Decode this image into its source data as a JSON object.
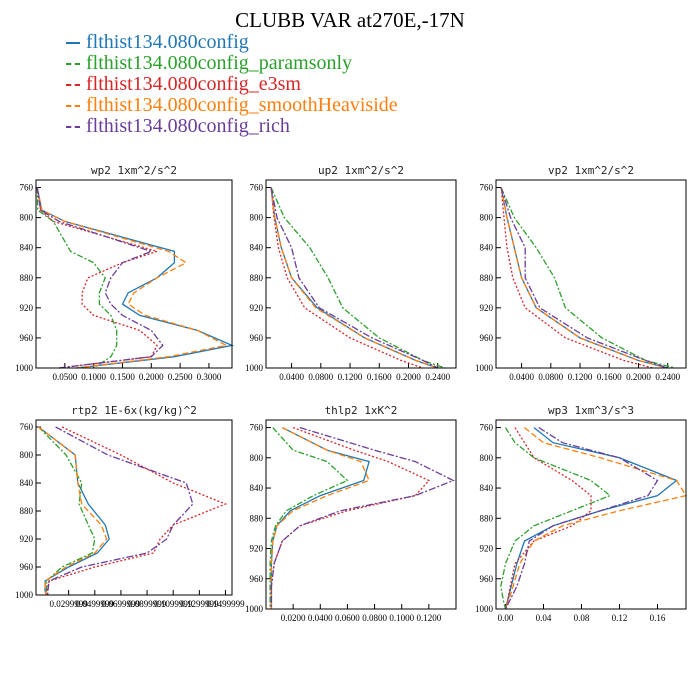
{
  "title": "CLUBB VAR at270E,-17N",
  "legend": [
    {
      "label": "flthist134.080config",
      "color": "#1f77b4",
      "dash": ""
    },
    {
      "label": "flthist134.080config_paramsonly",
      "color": "#2ca02c",
      "dash": "6,2,2,2"
    },
    {
      "label": "flthist134.080config_e3sm",
      "color": "#d62728",
      "dash": "2,2"
    },
    {
      "label": "flthist134.080config_smoothHeaviside",
      "color": "#ff7f0e",
      "dash": "6,3"
    },
    {
      "label": "flthist134.080config_rich",
      "color": "#6a3d9a",
      "dash": "7,2,2,2"
    }
  ],
  "chart_data": [
    {
      "type": "line",
      "title": "wp2  1xm^2/s^2",
      "xlim": [
        0,
        0.34
      ],
      "ylim": [
        1000,
        750
      ],
      "xticks": [
        0.05,
        0.1,
        0.15,
        0.2,
        0.25,
        0.3
      ],
      "xtick_labels": [
        "0.0500",
        "0.1000",
        "0.1500",
        "0.2000",
        "0.2500",
        "0.3000"
      ],
      "yticks": [
        760,
        800,
        840,
        880,
        920,
        960,
        1000
      ],
      "y": [
        760,
        790,
        805,
        845,
        860,
        880,
        900,
        915,
        930,
        950,
        970,
        985,
        1000
      ],
      "series": [
        {
          "name": "flthist134.080config",
          "x": [
            0.002,
            0.01,
            0.05,
            0.24,
            0.24,
            0.21,
            0.16,
            0.15,
            0.18,
            0.28,
            0.34,
            0.24,
            0.07
          ]
        },
        {
          "name": "flthist134.080config_paramsonly",
          "x": [
            0.002,
            0.003,
            0.03,
            0.06,
            0.1,
            0.12,
            0.11,
            0.11,
            0.13,
            0.14,
            0.14,
            0.13,
            0.1
          ]
        },
        {
          "name": "flthist134.080config_e3sm",
          "x": [
            0.002,
            0.008,
            0.03,
            0.21,
            0.15,
            0.09,
            0.08,
            0.08,
            0.1,
            0.18,
            0.21,
            0.2,
            0.04
          ]
        },
        {
          "name": "flthist134.080config_smoothHeaviside",
          "x": [
            0.002,
            0.01,
            0.05,
            0.23,
            0.26,
            0.21,
            0.17,
            0.16,
            0.19,
            0.28,
            0.33,
            0.23,
            0.07
          ]
        },
        {
          "name": "flthist134.080config_rich",
          "x": [
            0.002,
            0.008,
            0.04,
            0.2,
            0.15,
            0.13,
            0.12,
            0.13,
            0.15,
            0.2,
            0.22,
            0.2,
            0.04
          ]
        }
      ]
    },
    {
      "type": "line",
      "title": "up2  1xm^2/s^2",
      "xlim": [
        0.005,
        0.265
      ],
      "ylim": [
        1000,
        750
      ],
      "xticks": [
        0.04,
        0.08,
        0.12,
        0.16,
        0.2,
        0.24
      ],
      "xtick_labels": [
        "0.0400",
        "0.0800",
        "0.1200",
        "0.1600",
        "0.2000",
        "0.2400"
      ],
      "yticks": [
        760,
        800,
        840,
        880,
        920,
        960,
        1000
      ],
      "y": [
        760,
        800,
        840,
        880,
        920,
        960,
        990,
        1000
      ],
      "series": [
        {
          "name": "flthist134.080config",
          "x": [
            0.012,
            0.017,
            0.026,
            0.04,
            0.075,
            0.14,
            0.21,
            0.24
          ]
        },
        {
          "name": "flthist134.080config_paramsonly",
          "x": [
            0.012,
            0.03,
            0.065,
            0.09,
            0.11,
            0.16,
            0.22,
            0.25
          ]
        },
        {
          "name": "flthist134.080config_e3sm",
          "x": [
            0.012,
            0.016,
            0.022,
            0.034,
            0.058,
            0.12,
            0.19,
            0.22
          ]
        },
        {
          "name": "flthist134.080config_smoothHeaviside",
          "x": [
            0.012,
            0.017,
            0.026,
            0.04,
            0.073,
            0.14,
            0.21,
            0.24
          ]
        },
        {
          "name": "flthist134.080config_rich",
          "x": [
            0.012,
            0.02,
            0.04,
            0.05,
            0.078,
            0.15,
            0.22,
            0.24
          ]
        }
      ]
    },
    {
      "type": "line",
      "title": "vp2  1xm^2/s^2",
      "xlim": [
        0.005,
        0.265
      ],
      "ylim": [
        1000,
        750
      ],
      "xticks": [
        0.04,
        0.08,
        0.12,
        0.16,
        0.2,
        0.24
      ],
      "xtick_labels": [
        "0.0400",
        "0.0800",
        "0.1200",
        "0.1600",
        "0.2000",
        "0.2400"
      ],
      "yticks": [
        760,
        800,
        840,
        880,
        920,
        960,
        1000
      ],
      "y": [
        760,
        800,
        840,
        880,
        920,
        960,
        990,
        1000
      ],
      "series": [
        {
          "name": "flthist134.080config",
          "x": [
            0.012,
            0.02,
            0.03,
            0.04,
            0.06,
            0.12,
            0.2,
            0.24
          ]
        },
        {
          "name": "flthist134.080config_paramsonly",
          "x": [
            0.012,
            0.03,
            0.06,
            0.085,
            0.1,
            0.15,
            0.21,
            0.25
          ]
        },
        {
          "name": "flthist134.080config_e3sm",
          "x": [
            0.012,
            0.016,
            0.02,
            0.028,
            0.045,
            0.1,
            0.18,
            0.22
          ]
        },
        {
          "name": "flthist134.080config_smoothHeaviside",
          "x": [
            0.012,
            0.02,
            0.03,
            0.04,
            0.06,
            0.12,
            0.2,
            0.24
          ]
        },
        {
          "name": "flthist134.080config_rich",
          "x": [
            0.012,
            0.025,
            0.045,
            0.045,
            0.065,
            0.13,
            0.21,
            0.24
          ]
        }
      ]
    },
    {
      "type": "line",
      "title": "rtp2  1E-6x(kg/kg)^2",
      "xlim": [
        0.005,
        0.155
      ],
      "ylim": [
        1000,
        750
      ],
      "xticks": [
        0.03,
        0.05,
        0.07,
        0.09,
        0.11,
        0.13,
        0.15
      ],
      "xtick_labels": [
        "0.0299999",
        "0.0499999",
        "0.0699999",
        "0.0899999",
        "0.1099999",
        "0.1299999",
        "0.1499999"
      ],
      "yticks": [
        760,
        800,
        840,
        880,
        920,
        960,
        1000
      ],
      "y": [
        760,
        800,
        840,
        870,
        900,
        920,
        940,
        960,
        980,
        995,
        1000
      ],
      "series": [
        {
          "name": "flthist134.080config",
          "x": [
            0.007,
            0.035,
            0.037,
            0.045,
            0.058,
            0.061,
            0.052,
            0.03,
            0.012,
            0.012,
            0.013
          ]
        },
        {
          "name": "flthist134.080config_paramsonly",
          "x": [
            0.007,
            0.028,
            0.04,
            0.038,
            0.045,
            0.05,
            0.048,
            0.025,
            0.013,
            0.013,
            0.014
          ]
        },
        {
          "name": "flthist134.080config_e3sm",
          "x": [
            0.025,
            0.07,
            0.11,
            0.15,
            0.11,
            0.1,
            0.095,
            0.05,
            0.015,
            0.013,
            0.014
          ]
        },
        {
          "name": "flthist134.080config_smoothHeaviside",
          "x": [
            0.007,
            0.035,
            0.037,
            0.04,
            0.055,
            0.059,
            0.05,
            0.028,
            0.012,
            0.012,
            0.013
          ]
        },
        {
          "name": "flthist134.080config_rich",
          "x": [
            0.02,
            0.06,
            0.12,
            0.125,
            0.11,
            0.105,
            0.09,
            0.04,
            0.015,
            0.014,
            0.014
          ]
        }
      ]
    },
    {
      "type": "line",
      "title": "thlp2  1xK^2",
      "xlim": [
        0.0,
        0.14
      ],
      "ylim": [
        1000,
        750
      ],
      "xticks": [
        0.02,
        0.04,
        0.06,
        0.08,
        0.1,
        0.12
      ],
      "xtick_labels": [
        "0.0200",
        "0.0400",
        "0.0600",
        "0.0800",
        "0.1000",
        "0.1200"
      ],
      "yticks": [
        760,
        800,
        840,
        880,
        920,
        960,
        1000
      ],
      "y": [
        760,
        790,
        805,
        830,
        850,
        870,
        890,
        910,
        940,
        970,
        1000
      ],
      "series": [
        {
          "name": "flthist134.080config",
          "x": [
            0.012,
            0.045,
            0.076,
            0.072,
            0.04,
            0.018,
            0.008,
            0.005,
            0.004,
            0.004,
            0.004
          ]
        },
        {
          "name": "flthist134.080config_paramsonly",
          "x": [
            0.005,
            0.02,
            0.045,
            0.06,
            0.035,
            0.015,
            0.007,
            0.004,
            0.003,
            0.003,
            0.003
          ]
        },
        {
          "name": "flthist134.080config_e3sm",
          "x": [
            0.02,
            0.065,
            0.09,
            0.12,
            0.11,
            0.06,
            0.025,
            0.012,
            0.006,
            0.004,
            0.004
          ]
        },
        {
          "name": "flthist134.080config_smoothHeaviside",
          "x": [
            0.012,
            0.045,
            0.07,
            0.076,
            0.045,
            0.02,
            0.008,
            0.005,
            0.004,
            0.004,
            0.004
          ]
        },
        {
          "name": "flthist134.080config_rich",
          "x": [
            0.025,
            0.08,
            0.11,
            0.138,
            0.11,
            0.055,
            0.025,
            0.012,
            0.006,
            0.004,
            0.004
          ]
        }
      ]
    },
    {
      "type": "line",
      "title": "wp3  1xm^3/s^3",
      "xlim": [
        -0.01,
        0.19
      ],
      "ylim": [
        1000,
        750
      ],
      "xticks": [
        0.0,
        0.04,
        0.08,
        0.12,
        0.16
      ],
      "xtick_labels": [
        "0.00",
        "0.04",
        "0.08",
        "0.12",
        "0.16"
      ],
      "yticks": [
        760,
        800,
        840,
        880,
        920,
        960,
        1000
      ],
      "y": [
        760,
        780,
        800,
        830,
        850,
        870,
        890,
        910,
        940,
        970,
        990,
        1000
      ],
      "series": [
        {
          "name": "flthist134.080config",
          "x": [
            0.03,
            0.05,
            0.12,
            0.18,
            0.16,
            0.1,
            0.05,
            0.02,
            0.012,
            0.006,
            0.002,
            0.0
          ]
        },
        {
          "name": "flthist134.080config_paramsonly",
          "x": [
            0.0,
            0.01,
            0.03,
            0.09,
            0.11,
            0.07,
            0.03,
            0.01,
            0.0,
            -0.005,
            -0.002,
            0.0
          ]
        },
        {
          "name": "flthist134.080config_e3sm",
          "x": [
            0.01,
            0.02,
            0.03,
            0.07,
            0.09,
            0.09,
            0.07,
            0.03,
            0.01,
            0.005,
            0.002,
            0.0
          ]
        },
        {
          "name": "flthist134.080config_smoothHeaviside",
          "x": [
            0.02,
            0.04,
            0.1,
            0.18,
            0.19,
            0.12,
            0.06,
            0.03,
            0.015,
            0.008,
            0.003,
            0.0
          ]
        },
        {
          "name": "flthist134.080config_rich",
          "x": [
            0.035,
            0.06,
            0.12,
            0.16,
            0.15,
            0.1,
            0.05,
            0.025,
            0.02,
            0.012,
            0.004,
            0.0
          ]
        }
      ]
    }
  ]
}
